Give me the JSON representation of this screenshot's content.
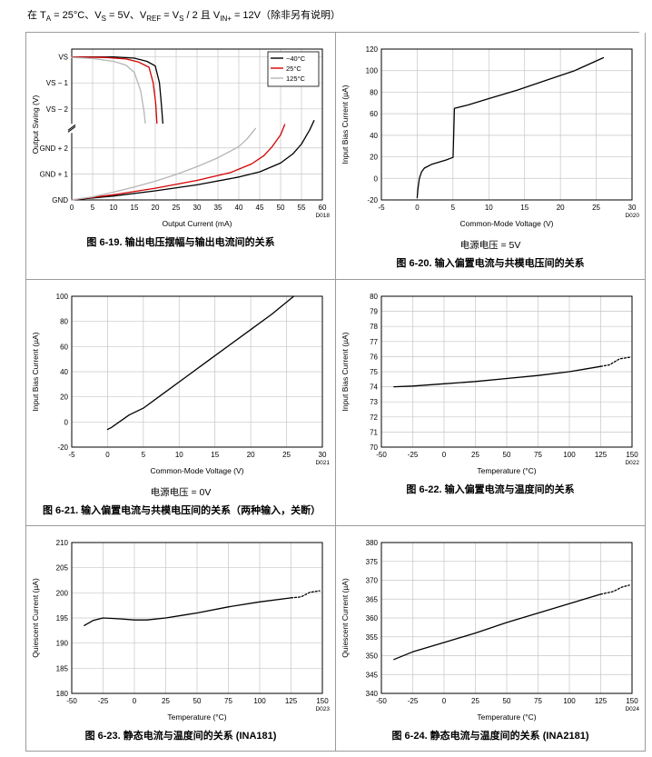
{
  "page": {
    "header_segments": [
      {
        "t": "在 T"
      },
      {
        "t": "A",
        "sub": true
      },
      {
        "t": " = 25°C、V"
      },
      {
        "t": "S",
        "sub": true
      },
      {
        "t": " = 5V、V"
      },
      {
        "t": "REF",
        "sub": true
      },
      {
        "t": " = V"
      },
      {
        "t": "S",
        "sub": true
      },
      {
        "t": " / 2 且 V"
      },
      {
        "t": "IN+",
        "sub": true
      },
      {
        "t": " = 12V（除非另有说明）"
      }
    ]
  },
  "chart_data": [
    {
      "type": "line",
      "caption": "图 6-19. 输出电压摆幅与输出电流间的关系",
      "code": "D018",
      "xlabel": "Output Current (mA)",
      "ylabel": "Output Swing (V)",
      "xlim": [
        0,
        60
      ],
      "xticks": [
        0,
        5,
        10,
        15,
        20,
        25,
        30,
        35,
        40,
        45,
        50,
        55,
        60
      ],
      "ylim": [
        0,
        5.8
      ],
      "yticks": [
        0,
        1,
        2,
        3.5,
        4.5,
        5.5
      ],
      "ytick_labels": [
        "GND",
        "GND + 1",
        "GND + 2",
        "VS − 2",
        "VS − 1",
        "VS"
      ],
      "axis_break": 2.75,
      "legend": [
        {
          "label": "−40°C",
          "color": "#000000"
        },
        {
          "label": "25°C",
          "color": "#d40000"
        },
        {
          "label": "125°C",
          "color": "#b5b5b5"
        }
      ],
      "series": [
        {
          "name": "-40C-high",
          "color": "#000000",
          "points": [
            [
              0,
              5.5
            ],
            [
              10,
              5.5
            ],
            [
              15,
              5.45
            ],
            [
              18,
              5.33
            ],
            [
              20,
              5.15
            ],
            [
              21,
              4.5
            ],
            [
              21.5,
              3.6
            ],
            [
              21.8,
              2.95
            ]
          ]
        },
        {
          "name": "25C-high",
          "color": "#d40000",
          "points": [
            [
              0,
              5.5
            ],
            [
              8,
              5.48
            ],
            [
              13,
              5.42
            ],
            [
              16,
              5.3
            ],
            [
              18.5,
              5.1
            ],
            [
              19.5,
              4.5
            ],
            [
              20.1,
              3.7
            ],
            [
              20.4,
              2.95
            ]
          ]
        },
        {
          "name": "125C-high",
          "color": "#b5b5b5",
          "points": [
            [
              0,
              5.48
            ],
            [
              5,
              5.44
            ],
            [
              10,
              5.33
            ],
            [
              13,
              5.18
            ],
            [
              15,
              4.9
            ],
            [
              16.5,
              4.2
            ],
            [
              17.3,
              3.4
            ],
            [
              17.6,
              2.95
            ]
          ]
        },
        {
          "name": "-40C-low",
          "color": "#000000",
          "points": [
            [
              0,
              0
            ],
            [
              10,
              0.15
            ],
            [
              20,
              0.35
            ],
            [
              30,
              0.58
            ],
            [
              40,
              0.88
            ],
            [
              45,
              1.08
            ],
            [
              50,
              1.42
            ],
            [
              53,
              1.78
            ],
            [
              55,
              2.15
            ],
            [
              57,
              2.7
            ],
            [
              58,
              3.05
            ]
          ]
        },
        {
          "name": "25C-low",
          "color": "#d40000",
          "points": [
            [
              0,
              0
            ],
            [
              10,
              0.2
            ],
            [
              20,
              0.45
            ],
            [
              30,
              0.75
            ],
            [
              38,
              1.05
            ],
            [
              43,
              1.38
            ],
            [
              46,
              1.7
            ],
            [
              48,
              2.05
            ],
            [
              50,
              2.5
            ],
            [
              51,
              2.9
            ]
          ]
        },
        {
          "name": "125C-low",
          "color": "#b5b5b5",
          "points": [
            [
              0,
              0
            ],
            [
              5,
              0.12
            ],
            [
              10,
              0.3
            ],
            [
              15,
              0.5
            ],
            [
              20,
              0.72
            ],
            [
              25,
              0.98
            ],
            [
              30,
              1.28
            ],
            [
              35,
              1.62
            ],
            [
              40,
              2.05
            ],
            [
              42,
              2.35
            ],
            [
              44,
              2.75
            ]
          ]
        }
      ]
    },
    {
      "type": "line",
      "caption": "图 6-20. 输入偏置电流与共模电压间的关系",
      "condition": "电源电压 = 5V",
      "code": "D020",
      "xlabel": "Common-Mode Voltage (V)",
      "ylabel": "Input Bias Current (µA)",
      "xlim": [
        -5,
        30
      ],
      "xticks": [
        -5,
        0,
        5,
        10,
        15,
        20,
        25,
        30
      ],
      "ylim": [
        -20,
        120
      ],
      "yticks": [
        -20,
        0,
        20,
        40,
        60,
        80,
        100,
        120
      ],
      "series": [
        {
          "name": "ib-vs-vcm",
          "color": "#000000",
          "points": [
            [
              0,
              -18
            ],
            [
              0.1,
              -10
            ],
            [
              0.3,
              0
            ],
            [
              0.6,
              6
            ],
            [
              1,
              9.5
            ],
            [
              2,
              13
            ],
            [
              3,
              15
            ],
            [
              4,
              17
            ],
            [
              5,
              19.5
            ],
            [
              5.1,
              40
            ],
            [
              5.2,
              65
            ],
            [
              7,
              68
            ],
            [
              10,
              74
            ],
            [
              14,
              82
            ],
            [
              18,
              91
            ],
            [
              22,
              100
            ],
            [
              26,
              112
            ]
          ]
        }
      ]
    },
    {
      "type": "line",
      "caption": "图 6-21. 输入偏置电流与共模电压间的关系（两种输入，关断）",
      "condition": "电源电压 = 0V",
      "code": "D021",
      "xlabel": "Common-Mode Voltage (V)",
      "ylabel": "Input Bias Current (µA)",
      "xlim": [
        -5,
        30
      ],
      "xticks": [
        -5,
        0,
        5,
        10,
        15,
        20,
        25,
        30
      ],
      "ylim": [
        -20,
        100
      ],
      "yticks": [
        -20,
        0,
        20,
        40,
        60,
        80,
        100
      ],
      "series": [
        {
          "name": "ib-vs-vcm-shutdown",
          "color": "#000000",
          "points": [
            [
              0,
              -6
            ],
            [
              0.5,
              -4.5
            ],
            [
              1,
              -2.5
            ],
            [
              2,
              1.5
            ],
            [
              3,
              5.5
            ],
            [
              5,
              11
            ],
            [
              8,
              23.5
            ],
            [
              11,
              36
            ],
            [
              14,
              48.5
            ],
            [
              17,
              61
            ],
            [
              20,
              73.5
            ],
            [
              23,
              86
            ],
            [
              26,
              100
            ]
          ]
        }
      ]
    },
    {
      "type": "line",
      "caption": "图 6-22. 输入偏置电流与温度间的关系",
      "code": "D022",
      "xlabel": "Temperature (°C)",
      "ylabel": "Input Bias Current (µA)",
      "xlim": [
        -50,
        150
      ],
      "xticks": [
        -50,
        -25,
        0,
        25,
        50,
        75,
        100,
        125,
        150
      ],
      "ylim": [
        70,
        80
      ],
      "yticks": [
        70,
        71,
        72,
        73,
        74,
        75,
        76,
        77,
        78,
        79,
        80
      ],
      "series": [
        {
          "name": "ib-vs-temp",
          "color": "#000000",
          "points": [
            [
              -40,
              74
            ],
            [
              -25,
              74.05
            ],
            [
              0,
              74.2
            ],
            [
              25,
              74.35
            ],
            [
              50,
              74.55
            ],
            [
              75,
              74.75
            ],
            [
              100,
              75.0
            ],
            [
              125,
              75.35
            ]
          ]
        },
        {
          "name": "ib-vs-temp-extrapolated",
          "color": "#000000",
          "dash": true,
          "points": [
            [
              125,
              75.35
            ],
            [
              132,
              75.45
            ],
            [
              140,
              75.85
            ],
            [
              148,
              75.95
            ]
          ]
        }
      ]
    },
    {
      "type": "line",
      "caption": "图 6-23. 静态电流与温度间的关系 (INA181)",
      "code": "D023",
      "xlabel": "Temperature (°C)",
      "ylabel": "Quiescent Current (µA)",
      "xlim": [
        -50,
        150
      ],
      "xticks": [
        -50,
        -25,
        0,
        25,
        50,
        75,
        100,
        125,
        150
      ],
      "ylim": [
        180,
        210
      ],
      "yticks": [
        180,
        185,
        190,
        195,
        200,
        205,
        210
      ],
      "series": [
        {
          "name": "iq-vs-temp-ina181",
          "color": "#000000",
          "points": [
            [
              -40,
              193.5
            ],
            [
              -33,
              194.5
            ],
            [
              -25,
              195
            ],
            [
              -10,
              194.8
            ],
            [
              0,
              194.6
            ],
            [
              10,
              194.6
            ],
            [
              25,
              195
            ],
            [
              40,
              195.6
            ],
            [
              50,
              196
            ],
            [
              75,
              197.2
            ],
            [
              100,
              198.2
            ],
            [
              125,
              199
            ]
          ]
        },
        {
          "name": "iq-vs-temp-ina181-extrapolated",
          "color": "#000000",
          "dash": true,
          "points": [
            [
              125,
              199
            ],
            [
              133,
              199.2
            ],
            [
              140,
              200.1
            ],
            [
              148,
              200.4
            ]
          ]
        }
      ]
    },
    {
      "type": "line",
      "caption": "图 6-24. 静态电流与温度间的关系 (INA2181)",
      "code": "D024",
      "xlabel": "Temperature (°C)",
      "ylabel": "Quiescent Current (µA)",
      "xlim": [
        -50,
        150
      ],
      "xticks": [
        -50,
        -25,
        0,
        25,
        50,
        75,
        100,
        125,
        150
      ],
      "ylim": [
        340,
        380
      ],
      "yticks": [
        340,
        345,
        350,
        355,
        360,
        365,
        370,
        375,
        380
      ],
      "series": [
        {
          "name": "iq-vs-temp-ina2181",
          "color": "#000000",
          "points": [
            [
              -40,
              349
            ],
            [
              -25,
              351
            ],
            [
              0,
              353.5
            ],
            [
              25,
              356
            ],
            [
              50,
              358.8
            ],
            [
              75,
              361.3
            ],
            [
              100,
              363.8
            ],
            [
              125,
              366.3
            ]
          ]
        },
        {
          "name": "iq-vs-temp-ina2181-extrapolated",
          "color": "#000000",
          "dash": true,
          "points": [
            [
              125,
              366.3
            ],
            [
              135,
              367
            ],
            [
              142,
              368.2
            ],
            [
              148,
              368.7
            ]
          ]
        }
      ]
    }
  ]
}
